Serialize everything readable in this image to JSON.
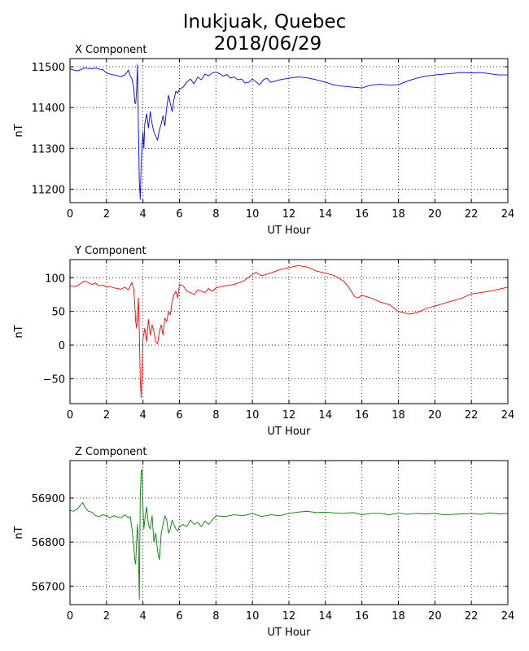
{
  "figure": {
    "title_line1": "Inukjuak, Quebec",
    "title_line2": "2018/06/29"
  },
  "chart_data": [
    {
      "type": "line",
      "title": "X Component",
      "xlabel": "UT Hour",
      "ylabel": "nT",
      "xlim": [
        0,
        24
      ],
      "ylim": [
        11167,
        11520
      ],
      "xticks": [
        0,
        2,
        4,
        6,
        8,
        10,
        12,
        14,
        16,
        18,
        20,
        22,
        24
      ],
      "yticks": [
        11200,
        11300,
        11400,
        11500
      ],
      "grid": true,
      "color": "#0000ff",
      "series": [
        {
          "x": [
            0,
            0.2,
            0.4,
            0.6,
            0.8,
            1.0,
            1.2,
            1.4,
            1.6,
            1.8,
            2.0,
            2.2,
            2.4,
            2.6,
            2.8,
            3.0,
            3.1,
            3.2,
            3.3,
            3.4,
            3.5,
            3.55,
            3.6,
            3.65,
            3.7,
            3.72,
            3.75,
            3.8,
            3.85,
            3.9,
            3.95,
            4.0,
            4.05,
            4.1,
            4.2,
            4.3,
            4.4,
            4.5,
            4.6,
            4.7,
            4.8,
            4.9,
            5.0,
            5.1,
            5.2,
            5.3,
            5.4,
            5.5,
            5.6,
            5.7,
            5.8,
            5.9,
            6.0,
            6.2,
            6.4,
            6.6,
            6.8,
            7.0,
            7.2,
            7.4,
            7.6,
            7.8,
            8.0,
            8.2,
            8.4,
            8.6,
            8.8,
            9.0,
            9.2,
            9.4,
            9.6,
            9.8,
            10.0,
            10.2,
            10.4,
            10.6,
            10.8,
            11.0,
            11.5,
            12.0,
            12.5,
            13.0,
            13.5,
            14.0,
            14.5,
            15.0,
            15.5,
            16.0,
            16.5,
            17.0,
            17.5,
            18.0,
            18.5,
            19.0,
            19.5,
            20.0,
            20.5,
            21.0,
            21.5,
            22.0,
            22.5,
            23.0,
            23.5,
            24.0
          ],
          "y": [
            11495,
            11492,
            11490,
            11493,
            11497,
            11496,
            11495,
            11497,
            11494,
            11493,
            11485,
            11482,
            11480,
            11478,
            11476,
            11480,
            11485,
            11492,
            11478,
            11470,
            11445,
            11412,
            11410,
            11440,
            11505,
            11440,
            11350,
            11220,
            11175,
            11260,
            11310,
            11340,
            11300,
            11360,
            11385,
            11350,
            11390,
            11360,
            11340,
            11330,
            11320,
            11345,
            11360,
            11380,
            11355,
            11400,
            11430,
            11410,
            11390,
            11420,
            11440,
            11435,
            11445,
            11450,
            11462,
            11470,
            11458,
            11475,
            11468,
            11482,
            11478,
            11485,
            11487,
            11483,
            11477,
            11481,
            11472,
            11475,
            11468,
            11470,
            11460,
            11462,
            11470,
            11463,
            11456,
            11468,
            11472,
            11462,
            11468,
            11472,
            11475,
            11473,
            11468,
            11462,
            11455,
            11452,
            11450,
            11448,
            11455,
            11457,
            11455,
            11456,
            11465,
            11472,
            11477,
            11480,
            11482,
            11484,
            11486,
            11485,
            11486,
            11483,
            11480,
            11480
          ]
        }
      ]
    },
    {
      "type": "line",
      "title": "Y Component",
      "xlabel": "UT Hour",
      "ylabel": "nT",
      "xlim": [
        0,
        24
      ],
      "ylim": [
        -87,
        127
      ],
      "xticks": [
        0,
        2,
        4,
        6,
        8,
        10,
        12,
        14,
        16,
        18,
        20,
        22,
        24
      ],
      "yticks": [
        -50,
        0,
        50,
        100
      ],
      "grid": true,
      "color": "#ff0000",
      "series": [
        {
          "x": [
            0,
            0.2,
            0.4,
            0.6,
            0.8,
            1.0,
            1.2,
            1.4,
            1.6,
            1.8,
            2.0,
            2.2,
            2.4,
            2.6,
            2.8,
            3.0,
            3.2,
            3.3,
            3.4,
            3.5,
            3.55,
            3.6,
            3.65,
            3.7,
            3.75,
            3.8,
            3.85,
            3.9,
            3.95,
            4.0,
            4.1,
            4.2,
            4.3,
            4.4,
            4.5,
            4.6,
            4.7,
            4.8,
            4.9,
            5.0,
            5.1,
            5.2,
            5.3,
            5.4,
            5.5,
            5.6,
            5.7,
            5.8,
            5.9,
            6.0,
            6.2,
            6.4,
            6.6,
            6.8,
            7.0,
            7.2,
            7.4,
            7.6,
            7.8,
            8.0,
            8.5,
            9.0,
            9.5,
            10.0,
            10.2,
            10.5,
            11.0,
            11.5,
            12.0,
            12.5,
            13.0,
            13.5,
            14.0,
            14.5,
            15.0,
            15.3,
            15.6,
            15.8,
            16.0,
            16.5,
            17.0,
            17.5,
            18.0,
            18.3,
            18.6,
            19.0,
            19.5,
            20.0,
            20.5,
            21.0,
            21.5,
            22.0,
            22.5,
            23.0,
            23.5,
            24.0
          ],
          "y": [
            88,
            87,
            88,
            92,
            95,
            93,
            90,
            92,
            88,
            89,
            86,
            87,
            85,
            84,
            83,
            86,
            82,
            88,
            93,
            82,
            60,
            35,
            25,
            45,
            70,
            20,
            -50,
            -78,
            -40,
            10,
            25,
            5,
            38,
            15,
            30,
            20,
            5,
            2,
            20,
            30,
            15,
            40,
            35,
            50,
            45,
            65,
            75,
            80,
            70,
            90,
            88,
            80,
            78,
            75,
            82,
            80,
            78,
            84,
            80,
            85,
            88,
            90,
            95,
            105,
            108,
            103,
            107,
            112,
            115,
            118,
            116,
            110,
            107,
            103,
            95,
            85,
            72,
            70,
            74,
            70,
            64,
            60,
            50,
            48,
            46,
            48,
            54,
            58,
            62,
            66,
            70,
            76,
            78,
            80,
            83,
            86
          ]
        }
      ]
    },
    {
      "type": "line",
      "title": "Z Component",
      "xlabel": "UT Hour",
      "ylabel": "nT",
      "xlim": [
        0,
        24
      ],
      "ylim": [
        56658,
        56985
      ],
      "xticks": [
        0,
        2,
        4,
        6,
        8,
        10,
        12,
        14,
        16,
        18,
        20,
        22,
        24
      ],
      "yticks": [
        56700,
        56800,
        56900
      ],
      "grid": true,
      "color": "#008000",
      "series": [
        {
          "x": [
            0,
            0.2,
            0.4,
            0.6,
            0.7,
            0.8,
            1.0,
            1.2,
            1.4,
            1.6,
            1.8,
            2.0,
            2.2,
            2.4,
            2.6,
            2.8,
            3.0,
            3.2,
            3.3,
            3.4,
            3.5,
            3.55,
            3.6,
            3.65,
            3.7,
            3.75,
            3.8,
            3.85,
            3.9,
            3.95,
            4.0,
            4.05,
            4.1,
            4.2,
            4.3,
            4.4,
            4.5,
            4.6,
            4.7,
            4.8,
            4.9,
            5.0,
            5.1,
            5.2,
            5.3,
            5.4,
            5.5,
            5.6,
            5.7,
            5.8,
            5.9,
            6.0,
            6.2,
            6.4,
            6.6,
            6.8,
            7.0,
            7.2,
            7.4,
            7.6,
            7.8,
            8.0,
            8.5,
            9.0,
            9.5,
            10.0,
            10.5,
            11.0,
            11.5,
            12.0,
            12.5,
            13.0,
            13.5,
            14.0,
            14.5,
            15.0,
            15.5,
            16.0,
            16.5,
            17.0,
            17.5,
            18.0,
            18.5,
            19.0,
            19.5,
            20.0,
            20.5,
            21.0,
            21.5,
            22.0,
            22.5,
            23.0,
            23.5,
            24.0
          ],
          "y": [
            56872,
            56870,
            56875,
            56885,
            56890,
            56880,
            56870,
            56868,
            56860,
            56858,
            56862,
            56860,
            56855,
            56860,
            56857,
            56855,
            56862,
            56855,
            56858,
            56830,
            56790,
            56760,
            56750,
            56800,
            56840,
            56790,
            56670,
            56900,
            56960,
            56965,
            56880,
            56830,
            56850,
            56880,
            56840,
            56830,
            56860,
            56800,
            56820,
            56780,
            56760,
            56820,
            56840,
            56860,
            56850,
            56820,
            56830,
            56850,
            56840,
            56830,
            56825,
            56835,
            56840,
            56835,
            56850,
            56840,
            56845,
            56835,
            56848,
            56840,
            56850,
            56860,
            56858,
            56862,
            56860,
            56865,
            56858,
            56862,
            56860,
            56865,
            56868,
            56870,
            56867,
            56868,
            56866,
            56865,
            56867,
            56862,
            56865,
            56865,
            56862,
            56866,
            56863,
            56865,
            56864,
            56865,
            56862,
            56863,
            56864,
            56865,
            56863,
            56866,
            56864,
            56865
          ]
        }
      ]
    }
  ]
}
